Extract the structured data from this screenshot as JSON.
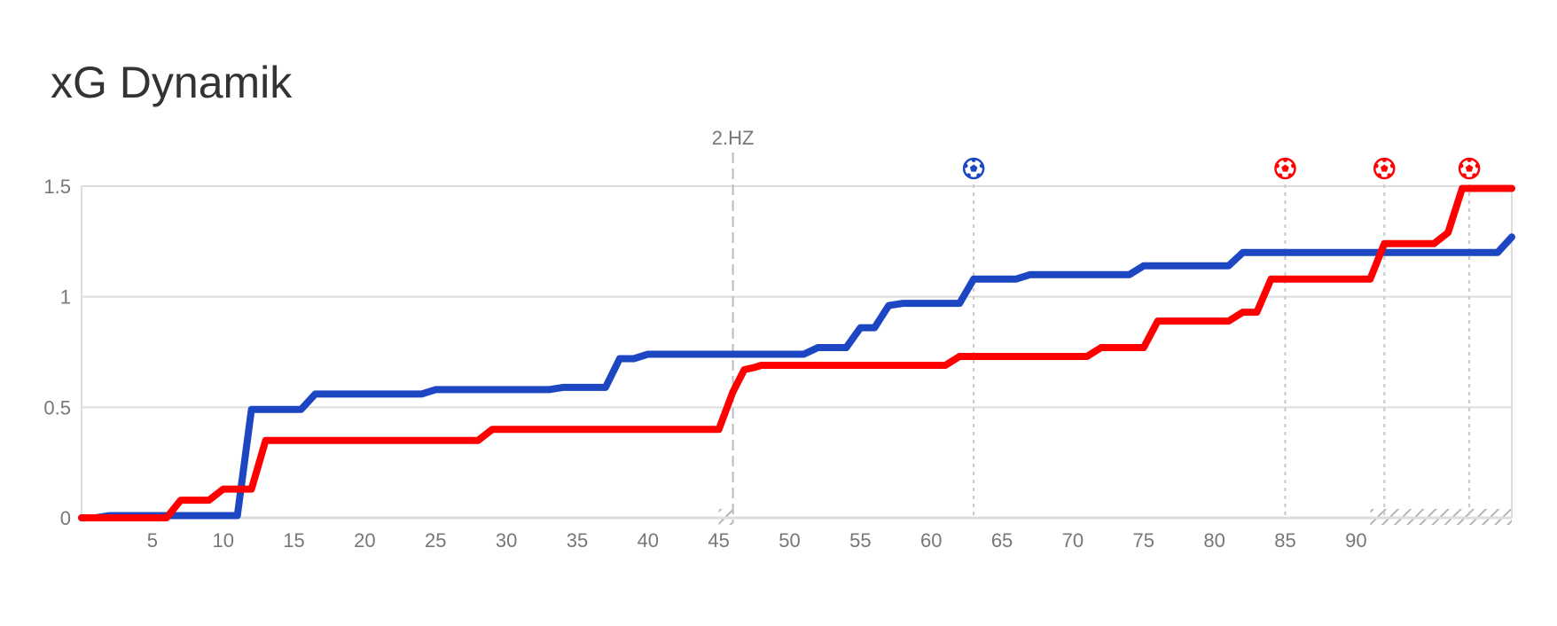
{
  "chart_data": {
    "type": "line",
    "title": "xG Dynamik",
    "xlabel": "",
    "ylabel": "",
    "xlim": [
      0,
      101
    ],
    "ylim": [
      0,
      1.5
    ],
    "grid": true,
    "legend": "none",
    "x_ticks": [
      5,
      10,
      15,
      20,
      25,
      30,
      35,
      40,
      45,
      50,
      55,
      60,
      65,
      70,
      75,
      80,
      85,
      90
    ],
    "y_ticks": [
      {
        "value": 0,
        "label": "0"
      },
      {
        "value": 0.5,
        "label": "0.5"
      },
      {
        "value": 1,
        "label": "1"
      },
      {
        "value": 1.5,
        "label": "1.5"
      }
    ],
    "halftime": {
      "x": 46,
      "label": "2.HZ"
    },
    "series": [
      {
        "color": "#1c46c2",
        "points": [
          [
            0,
            0
          ],
          [
            1,
            0
          ],
          [
            2,
            0.01
          ],
          [
            6,
            0.01
          ],
          [
            10,
            0.01
          ],
          [
            11,
            0.01
          ],
          [
            12,
            0.49
          ],
          [
            15.5,
            0.49
          ],
          [
            16.5,
            0.56
          ],
          [
            23,
            0.56
          ],
          [
            24,
            0.56
          ],
          [
            25,
            0.58
          ],
          [
            33,
            0.58
          ],
          [
            34,
            0.59
          ],
          [
            37,
            0.59
          ],
          [
            38,
            0.72
          ],
          [
            39,
            0.72
          ],
          [
            40,
            0.74
          ],
          [
            51,
            0.74
          ],
          [
            52,
            0.77
          ],
          [
            54,
            0.77
          ],
          [
            55,
            0.86
          ],
          [
            56,
            0.86
          ],
          [
            57,
            0.96
          ],
          [
            58,
            0.97
          ],
          [
            62,
            0.97
          ],
          [
            63,
            1.08
          ],
          [
            66,
            1.08
          ],
          [
            67,
            1.1
          ],
          [
            74,
            1.1
          ],
          [
            75,
            1.14
          ],
          [
            81,
            1.14
          ],
          [
            82,
            1.2
          ],
          [
            100,
            1.2
          ],
          [
            101,
            1.27
          ]
        ]
      },
      {
        "color": "#ff0000",
        "points": [
          [
            0,
            0
          ],
          [
            6,
            0
          ],
          [
            7,
            0.08
          ],
          [
            9,
            0.08
          ],
          [
            10,
            0.13
          ],
          [
            12,
            0.13
          ],
          [
            13,
            0.35
          ],
          [
            28,
            0.35
          ],
          [
            29,
            0.4
          ],
          [
            45,
            0.4
          ],
          [
            46,
            0.57
          ],
          [
            46.8,
            0.67
          ],
          [
            47.5,
            0.68
          ],
          [
            48,
            0.69
          ],
          [
            61,
            0.69
          ],
          [
            62,
            0.73
          ],
          [
            71,
            0.73
          ],
          [
            72,
            0.77
          ],
          [
            75,
            0.77
          ],
          [
            76,
            0.89
          ],
          [
            81,
            0.89
          ],
          [
            82,
            0.93
          ],
          [
            83,
            0.93
          ],
          [
            84,
            1.08
          ],
          [
            91,
            1.08
          ],
          [
            92,
            1.24
          ],
          [
            95.5,
            1.24
          ],
          [
            96.5,
            1.29
          ],
          [
            97.5,
            1.49
          ],
          [
            101,
            1.49
          ]
        ]
      }
    ],
    "goals": [
      {
        "x": 63,
        "color": "#1c46c2",
        "icon": "soccer-ball-icon"
      },
      {
        "x": 85,
        "color": "#ff0000",
        "icon": "soccer-ball-icon"
      },
      {
        "x": 92,
        "color": "#ff0000",
        "icon": "soccer-ball-icon"
      },
      {
        "x": 98,
        "color": "#ff0000",
        "icon": "soccer-ball-icon"
      }
    ],
    "stoppage_ranges": [
      [
        45,
        46
      ],
      [
        91,
        101
      ]
    ]
  }
}
